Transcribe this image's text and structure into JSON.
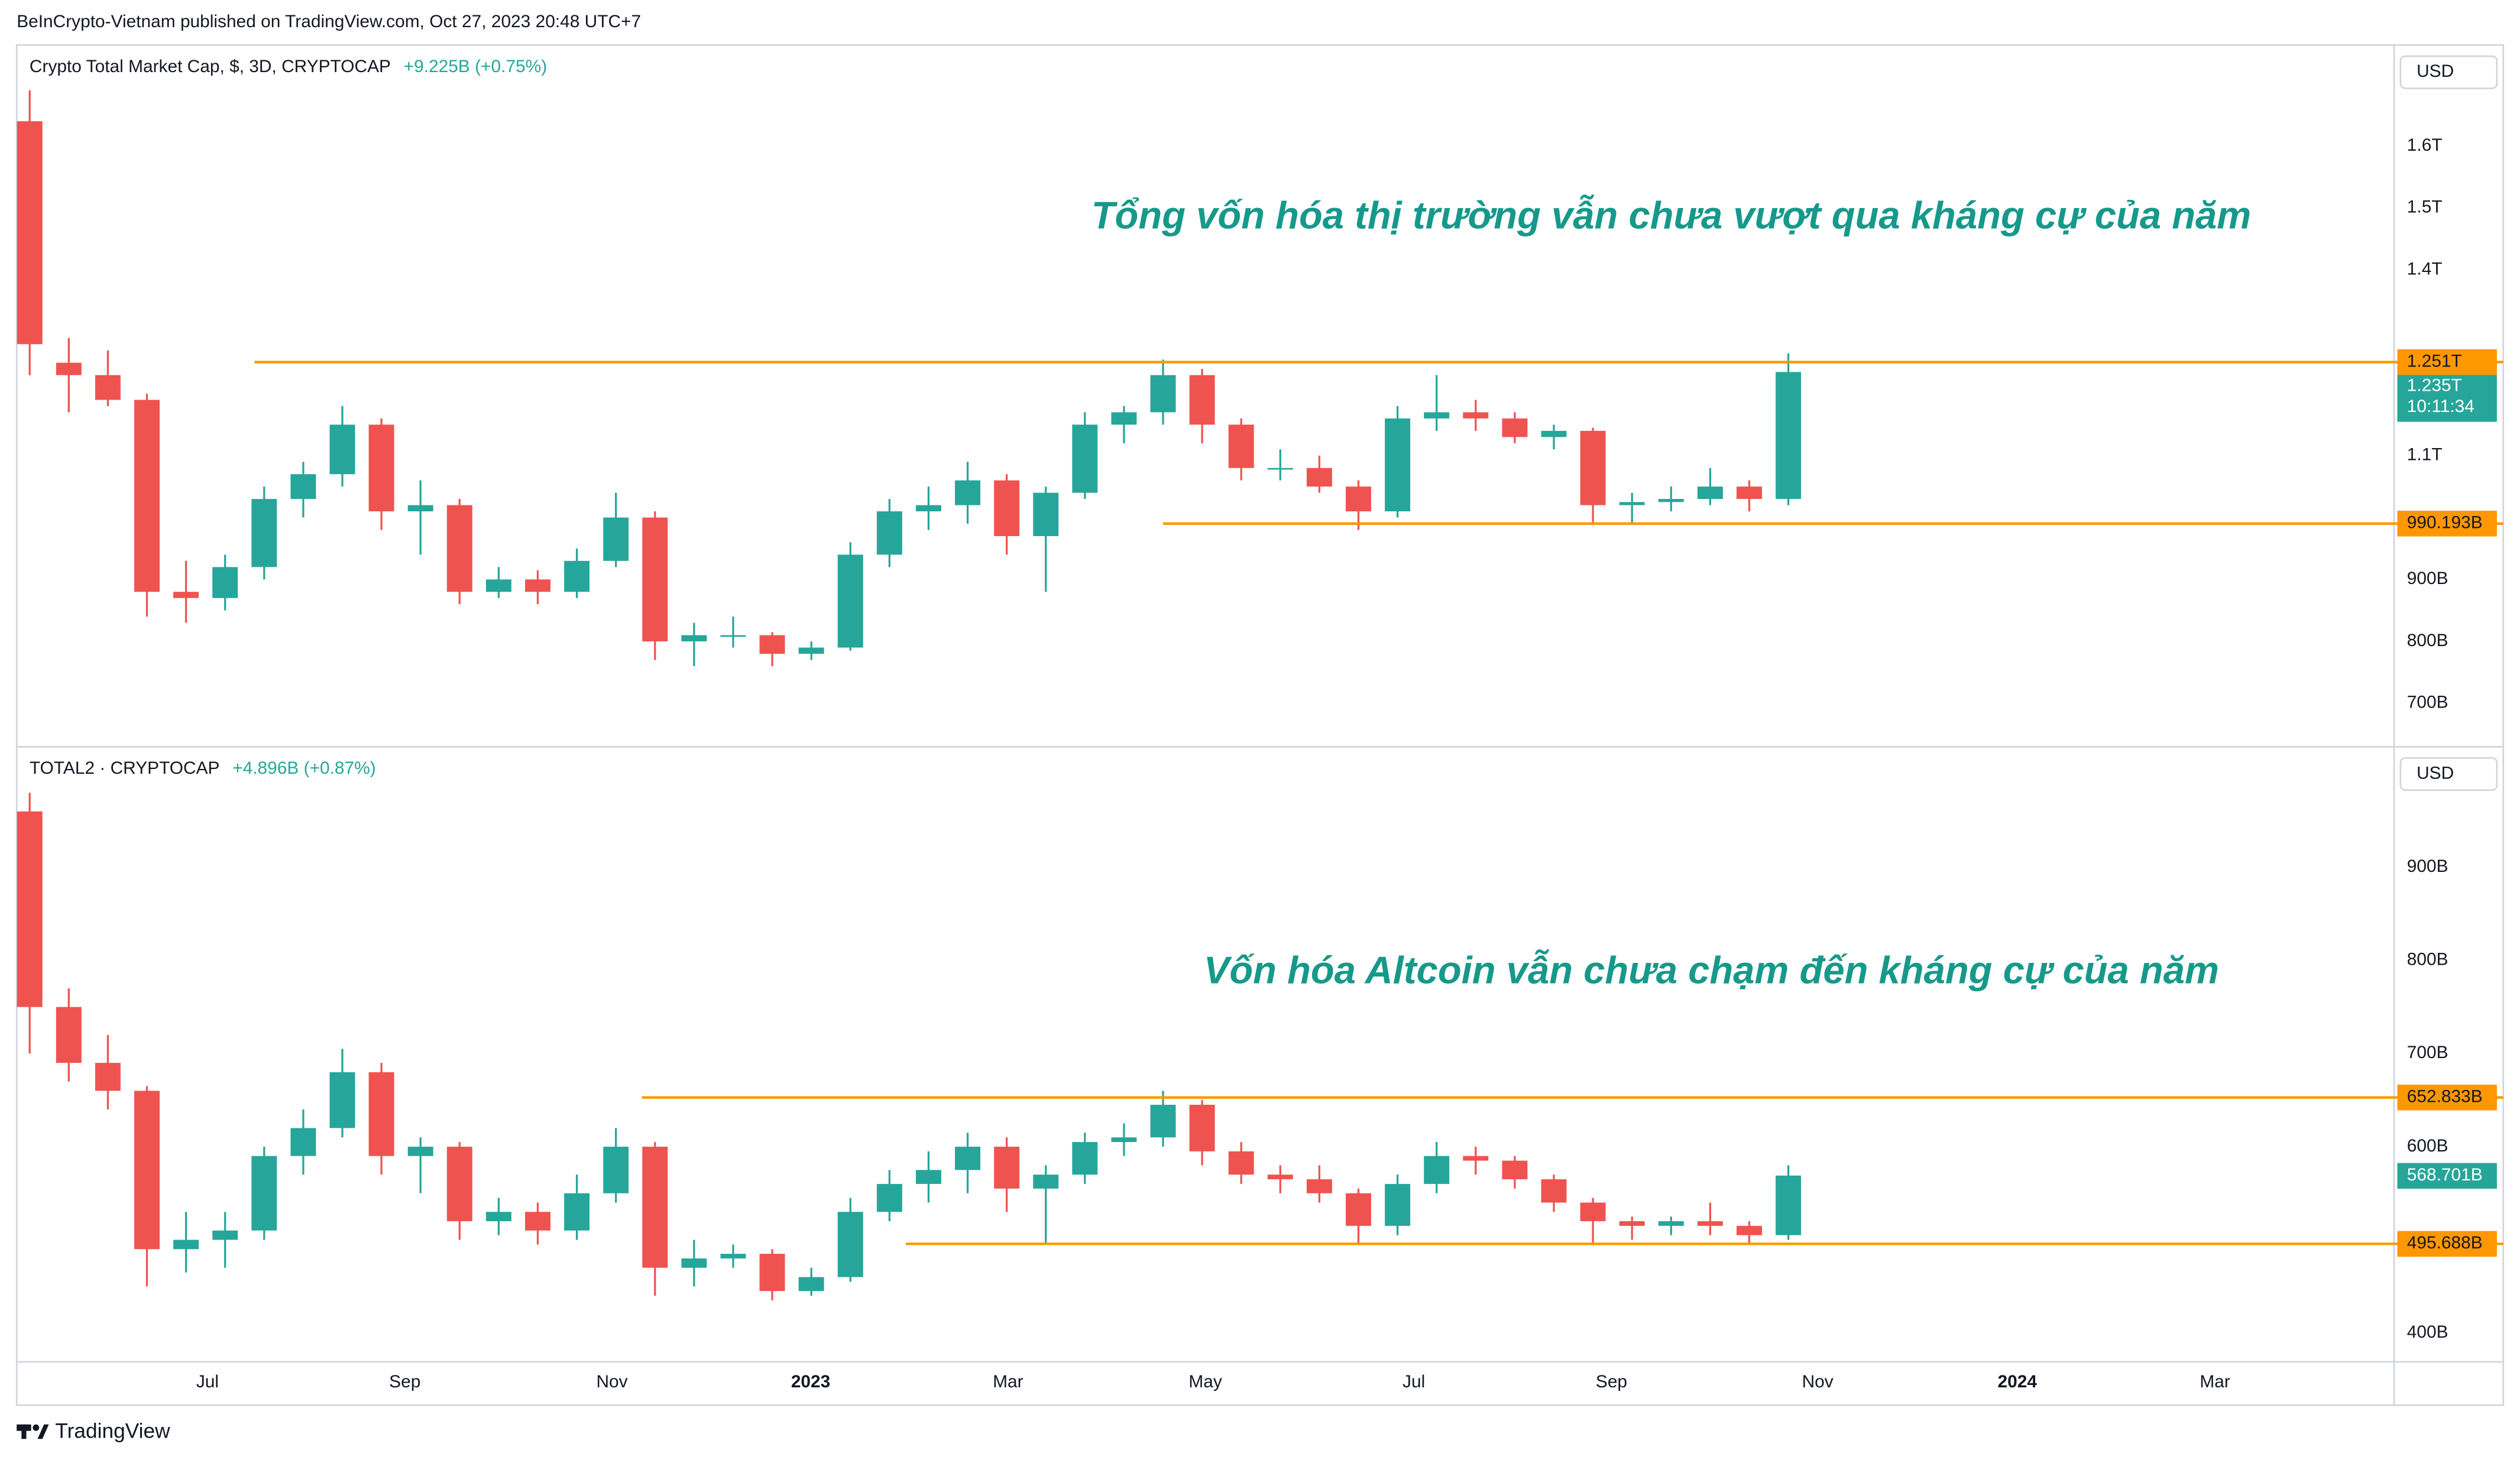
{
  "header": "BeInCrypto-Vietnam published on TradingView.com, Oct 27, 2023 20:48 UTC+7",
  "footer": "TradingView",
  "chart_data": [
    {
      "type": "candlestick",
      "title": "Crypto Total Market Cap, $, 3D, CRYPTOCAP",
      "change": "+9.225B (+0.75%)",
      "currency": "USD",
      "annotation": "Tổng vốn hóa thị trường vẫn chưa vượt qua kháng cự của năm",
      "up_color": "#26a69a",
      "down_color": "#ef5350",
      "xlim": [
        0,
        730
      ],
      "ylim": [
        635,
        1758
      ],
      "yticks": [
        {
          "value": 1600,
          "label": "1.6T"
        },
        {
          "value": 1500,
          "label": "1.5T"
        },
        {
          "value": 1400,
          "label": "1.4T"
        },
        {
          "value": 1100,
          "label": "1.1T"
        },
        {
          "value": 900,
          "label": "900B"
        },
        {
          "value": 800,
          "label": "800B"
        },
        {
          "value": 700,
          "label": "700B"
        }
      ],
      "x": [
        4,
        16,
        28,
        40,
        52,
        64,
        76,
        88,
        100,
        112,
        124,
        136,
        148,
        160,
        172,
        184,
        196,
        208,
        220,
        232,
        244,
        256,
        268,
        280,
        292,
        304,
        316,
        328,
        340,
        352,
        364,
        376,
        388,
        400,
        412,
        424,
        436,
        448,
        460,
        472,
        484,
        496,
        508,
        520,
        532,
        544
      ],
      "ohlc": [
        [
          1640,
          1690,
          1230,
          1280
        ],
        [
          1250,
          1290,
          1170,
          1230
        ],
        [
          1230,
          1270,
          1180,
          1190
        ],
        [
          1190,
          1200,
          840,
          880
        ],
        [
          880,
          930,
          830,
          870
        ],
        [
          870,
          940,
          850,
          920
        ],
        [
          920,
          1050,
          900,
          1030
        ],
        [
          1030,
          1090,
          1000,
          1070
        ],
        [
          1070,
          1180,
          1050,
          1150
        ],
        [
          1150,
          1160,
          980,
          1010
        ],
        [
          1010,
          1060,
          940,
          1020
        ],
        [
          1020,
          1030,
          860,
          880
        ],
        [
          880,
          920,
          870,
          900
        ],
        [
          900,
          915,
          860,
          880
        ],
        [
          880,
          950,
          870,
          930
        ],
        [
          930,
          1040,
          920,
          1000
        ],
        [
          1000,
          1010,
          770,
          800
        ],
        [
          800,
          830,
          760,
          810
        ],
        [
          810,
          840,
          790,
          810
        ],
        [
          810,
          815,
          760,
          780
        ],
        [
          780,
          800,
          770,
          790
        ],
        [
          790,
          960,
          785,
          940
        ],
        [
          940,
          1030,
          920,
          1010
        ],
        [
          1010,
          1050,
          980,
          1020
        ],
        [
          1020,
          1090,
          990,
          1060
        ],
        [
          1060,
          1070,
          940,
          970
        ],
        [
          970,
          1050,
          880,
          1040
        ],
        [
          1040,
          1170,
          1030,
          1150
        ],
        [
          1150,
          1180,
          1120,
          1170
        ],
        [
          1170,
          1255,
          1150,
          1230
        ],
        [
          1230,
          1240,
          1120,
          1150
        ],
        [
          1150,
          1160,
          1060,
          1080
        ],
        [
          1080,
          1110,
          1060,
          1080
        ],
        [
          1080,
          1100,
          1040,
          1050
        ],
        [
          1050,
          1060,
          980,
          1010
        ],
        [
          1010,
          1180,
          1000,
          1160
        ],
        [
          1160,
          1230,
          1140,
          1170
        ],
        [
          1170,
          1190,
          1140,
          1160
        ],
        [
          1160,
          1170,
          1120,
          1130
        ],
        [
          1130,
          1150,
          1110,
          1140
        ],
        [
          1140,
          1145,
          990,
          1020
        ],
        [
          1020,
          1040,
          990,
          1025
        ],
        [
          1025,
          1050,
          1010,
          1030
        ],
        [
          1030,
          1080,
          1020,
          1050
        ],
        [
          1050,
          1060,
          1010,
          1030
        ],
        [
          1030,
          1265,
          1020,
          1235
        ]
      ],
      "levels": [
        {
          "value": 1251,
          "label": "1.251T",
          "from": 73
        },
        {
          "value": 990.193,
          "label": "990.193B",
          "from": 352
        }
      ],
      "last_price": {
        "value": 1235,
        "label": "1.235T",
        "countdown": "10:11:34"
      }
    },
    {
      "type": "candlestick",
      "title": "TOTAL2 · CRYPTOCAP",
      "change": "+4.896B (+0.87%)",
      "currency": "USD",
      "annotation": "Vốn hóa Altcoin vẫn chưa chạm đến kháng cự của năm",
      "up_color": "#26a69a",
      "down_color": "#ef5350",
      "xlim": [
        0,
        730
      ],
      "ylim": [
        369,
        1026
      ],
      "yticks": [
        {
          "value": 900,
          "label": "900B"
        },
        {
          "value": 800,
          "label": "800B"
        },
        {
          "value": 700,
          "label": "700B"
        },
        {
          "value": 600,
          "label": "600B"
        },
        {
          "value": 400,
          "label": "400B"
        }
      ],
      "xticks": [
        {
          "value": 58.6,
          "label": "Jul"
        },
        {
          "value": 119.2,
          "label": "Sep"
        },
        {
          "value": 182.8,
          "label": "Nov"
        },
        {
          "value": 243.8,
          "label": "2023"
        },
        {
          "value": 304.4,
          "label": "Mar"
        },
        {
          "value": 365,
          "label": "May"
        },
        {
          "value": 429,
          "label": "Jul"
        },
        {
          "value": 489.7,
          "label": "Sep"
        },
        {
          "value": 553,
          "label": "Nov"
        },
        {
          "value": 614.3,
          "label": "2024"
        },
        {
          "value": 675,
          "label": "Mar"
        }
      ],
      "x": [
        4,
        16,
        28,
        40,
        52,
        64,
        76,
        88,
        100,
        112,
        124,
        136,
        148,
        160,
        172,
        184,
        196,
        208,
        220,
        232,
        244,
        256,
        268,
        280,
        292,
        304,
        316,
        328,
        340,
        352,
        364,
        376,
        388,
        400,
        412,
        424,
        436,
        448,
        460,
        472,
        484,
        496,
        508,
        520,
        532,
        544
      ],
      "ohlc": [
        [
          960,
          980,
          700,
          750
        ],
        [
          750,
          770,
          670,
          690
        ],
        [
          690,
          720,
          640,
          660
        ],
        [
          660,
          665,
          450,
          490
        ],
        [
          490,
          530,
          465,
          500
        ],
        [
          500,
          530,
          470,
          510
        ],
        [
          510,
          600,
          500,
          590
        ],
        [
          590,
          640,
          570,
          620
        ],
        [
          620,
          705,
          610,
          680
        ],
        [
          680,
          690,
          570,
          590
        ],
        [
          590,
          610,
          550,
          600
        ],
        [
          600,
          605,
          500,
          520
        ],
        [
          520,
          545,
          505,
          530
        ],
        [
          530,
          540,
          495,
          510
        ],
        [
          510,
          570,
          500,
          550
        ],
        [
          550,
          620,
          540,
          600
        ],
        [
          600,
          605,
          440,
          470
        ],
        [
          470,
          500,
          450,
          480
        ],
        [
          480,
          495,
          470,
          485
        ],
        [
          485,
          490,
          435,
          445
        ],
        [
          445,
          470,
          440,
          460
        ],
        [
          460,
          545,
          455,
          530
        ],
        [
          530,
          575,
          520,
          560
        ],
        [
          560,
          595,
          540,
          575
        ],
        [
          575,
          615,
          550,
          600
        ],
        [
          600,
          610,
          530,
          555
        ],
        [
          555,
          580,
          495,
          570
        ],
        [
          570,
          615,
          560,
          605
        ],
        [
          605,
          625,
          590,
          610
        ],
        [
          610,
          660,
          600,
          645
        ],
        [
          645,
          650,
          580,
          595
        ],
        [
          595,
          605,
          560,
          570
        ],
        [
          570,
          580,
          550,
          565
        ],
        [
          565,
          580,
          540,
          550
        ],
        [
          550,
          555,
          495,
          515
        ],
        [
          515,
          570,
          505,
          560
        ],
        [
          560,
          605,
          550,
          590
        ],
        [
          590,
          600,
          570,
          585
        ],
        [
          585,
          590,
          555,
          565
        ],
        [
          565,
          570,
          530,
          540
        ],
        [
          540,
          545,
          495,
          520
        ],
        [
          520,
          525,
          500,
          515
        ],
        [
          515,
          525,
          505,
          520
        ],
        [
          520,
          540,
          505,
          515
        ],
        [
          515,
          520,
          495,
          505
        ],
        [
          505,
          580,
          500,
          569
        ]
      ],
      "levels": [
        {
          "value": 652.833,
          "label": "652.833B",
          "from": 192
        },
        {
          "value": 495.688,
          "label": "495.688B",
          "from": 273
        }
      ],
      "last_price": {
        "value": 568.701,
        "label": "568.701B"
      }
    }
  ]
}
